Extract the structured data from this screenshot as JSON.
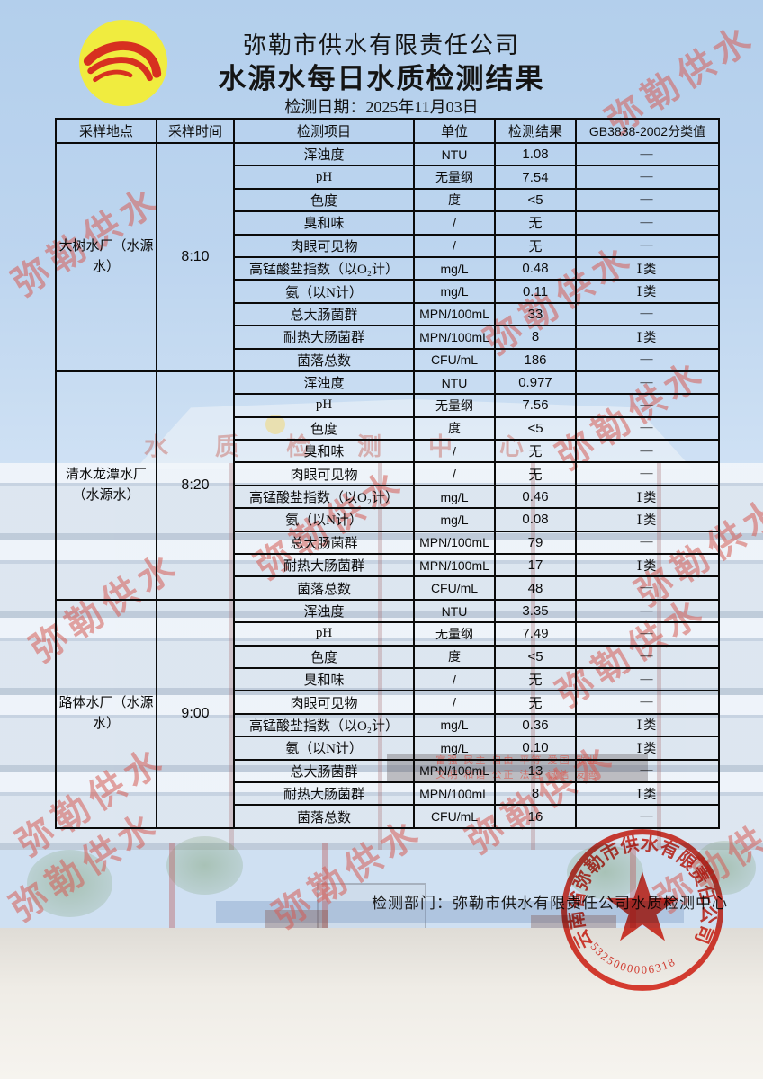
{
  "page": {
    "company": "弥勒市供水有限责任公司",
    "title": "水源水每日水质检测结果",
    "date": "检测日期：2025年11月03日"
  },
  "table": {
    "headers": [
      "采样地点",
      "采样时间",
      "检测项目",
      "单位",
      "检测结果",
      "GB3838-2002分类值"
    ],
    "sections": [
      {
        "location": "大树水厂（水源水）",
        "time": "8:10",
        "rows": [
          {
            "item": "浑浊度",
            "unit": "NTU",
            "result": "1.08",
            "cls": "—"
          },
          {
            "item": "pH",
            "unit": "无量纲",
            "result": "7.54",
            "cls": "—"
          },
          {
            "item": "色度",
            "unit": "度",
            "result": "<5",
            "cls": "—"
          },
          {
            "item": "臭和味",
            "unit": "/",
            "result": "无",
            "cls": "—"
          },
          {
            "item": "肉眼可见物",
            "unit": "/",
            "result": "无",
            "cls": "—"
          },
          {
            "item": "高锰酸盐指数（以O₂计）",
            "unit": "mg/L",
            "result": "0.48",
            "cls": "Ⅰ类"
          },
          {
            "item": "氨（以N计）",
            "unit": "mg/L",
            "result": "0.11",
            "cls": "Ⅰ类"
          },
          {
            "item": "总大肠菌群",
            "unit": "MPN/100mL",
            "result": "33",
            "cls": "—"
          },
          {
            "item": "耐热大肠菌群",
            "unit": "MPN/100mL",
            "result": "8",
            "cls": "Ⅰ类"
          },
          {
            "item": "菌落总数",
            "unit": "CFU/mL",
            "result": "186",
            "cls": "—"
          }
        ]
      },
      {
        "location": "清水龙潭水厂（水源水）",
        "time": "8:20",
        "rows": [
          {
            "item": "浑浊度",
            "unit": "NTU",
            "result": "0.977",
            "cls": "—"
          },
          {
            "item": "pH",
            "unit": "无量纲",
            "result": "7.56",
            "cls": "—"
          },
          {
            "item": "色度",
            "unit": "度",
            "result": "<5",
            "cls": "—"
          },
          {
            "item": "臭和味",
            "unit": "/",
            "result": "无",
            "cls": "—"
          },
          {
            "item": "肉眼可见物",
            "unit": "/",
            "result": "无",
            "cls": "—"
          },
          {
            "item": "高锰酸盐指数（以O₂计）",
            "unit": "mg/L",
            "result": "0.46",
            "cls": "Ⅰ类"
          },
          {
            "item": "氨（以N计）",
            "unit": "mg/L",
            "result": "0.08",
            "cls": "Ⅰ类"
          },
          {
            "item": "总大肠菌群",
            "unit": "MPN/100mL",
            "result": "79",
            "cls": "—"
          },
          {
            "item": "耐热大肠菌群",
            "unit": "MPN/100mL",
            "result": "17",
            "cls": "Ⅰ类"
          },
          {
            "item": "菌落总数",
            "unit": "CFU/mL",
            "result": "48",
            "cls": "—"
          }
        ]
      },
      {
        "location": "路体水厂（水源水）",
        "time": "9:00",
        "rows": [
          {
            "item": "浑浊度",
            "unit": "NTU",
            "result": "3.35",
            "cls": "—"
          },
          {
            "item": "pH",
            "unit": "无量纲",
            "result": "7.49",
            "cls": "—"
          },
          {
            "item": "色度",
            "unit": "度",
            "result": "<5",
            "cls": "—"
          },
          {
            "item": "臭和味",
            "unit": "/",
            "result": "无",
            "cls": "—"
          },
          {
            "item": "肉眼可见物",
            "unit": "/",
            "result": "无",
            "cls": "—"
          },
          {
            "item": "高锰酸盐指数（以O₂计）",
            "unit": "mg/L",
            "result": "0.36",
            "cls": "Ⅰ类"
          },
          {
            "item": "氨（以N计）",
            "unit": "mg/L",
            "result": "0.10",
            "cls": "Ⅰ类"
          },
          {
            "item": "总大肠菌群",
            "unit": "MPN/100mL",
            "result": "13",
            "cls": "—"
          },
          {
            "item": "耐热大肠菌群",
            "unit": "MPN/100mL",
            "result": "8",
            "cls": "Ⅰ类"
          },
          {
            "item": "菌落总数",
            "unit": "CFU/mL",
            "result": "16",
            "cls": "—"
          }
        ]
      }
    ]
  },
  "footer": {
    "department": "检测部门：弥勒市供水有限责任公司水质检测中心"
  },
  "seal": {
    "company": "云南省弥勒市供水有限责任公司",
    "number": "5325000006318"
  },
  "watermark": {
    "text": "弥勒供水"
  },
  "background": {
    "building_sign": "水质检测中心",
    "led_line1": "富强 民主 自由 平等 爱国 敬业",
    "led_line2": "文明 和谐 公正 法治 诚信 友善"
  },
  "colors": {
    "seal_red": "#e02417",
    "watermark_pink": "#d65c56",
    "logo_yellow": "#f0ec3f",
    "logo_red": "#d73020",
    "sky_blue": "#b3cfec",
    "table_border": "#0a0a0a"
  }
}
